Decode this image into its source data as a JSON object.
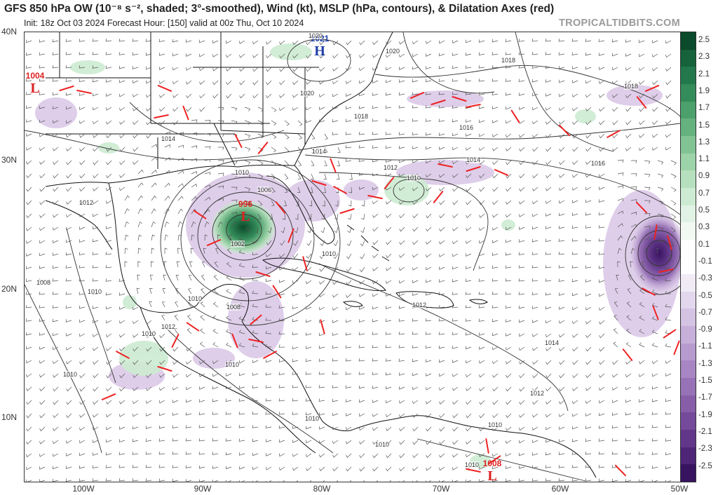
{
  "header": {
    "title": "GFS 850 hPa OW (10⁻⁸ s⁻², shaded; 3°-smoothed), Wind (kt), MSLP (hPa, contours), & Dilatation Axes (red)",
    "subtitle": "Init: 18z Oct 03 2024   Forecast Hour: [150]   valid at 00z Thu, Oct 10 2024",
    "brand": "TROPICALTIDBITS.COM"
  },
  "axes": {
    "lat_labels": [
      "40N",
      "30N",
      "20N",
      "10N"
    ],
    "lon_labels": [
      "100W",
      "90W",
      "80W",
      "70W",
      "60W",
      "50W"
    ]
  },
  "colorbar": {
    "labels": [
      "2.5",
      "2.3",
      "2.1",
      "1.9",
      "1.7",
      "1.5",
      "1.3",
      "1.1",
      "0.9",
      "0.7",
      "0.5",
      "0.3",
      "0.1",
      "-0.1",
      "-0.3",
      "-0.5",
      "-0.7",
      "-0.9",
      "-1.1",
      "-1.3",
      "-1.5",
      "-1.7",
      "-1.9",
      "-2.1",
      "-2.3",
      "-2.5"
    ],
    "colors": [
      "#0b4a2a",
      "#16623a",
      "#22784a",
      "#348c5a",
      "#4ca06c",
      "#66b27e",
      "#82c394",
      "#9dd3a8",
      "#b6e0bd",
      "#cdebd2",
      "#e1f3e4",
      "#f1f9f2",
      "#ffffff",
      "#ffffff",
      "#f1ebf6",
      "#e3d7ed",
      "#d5c3e3",
      "#c6afd9",
      "#b79bce",
      "#a886c3",
      "#9872b6",
      "#885ea9",
      "#764a9a",
      "#62378a",
      "#4e2577",
      "#381460"
    ]
  },
  "systems": [
    {
      "letter": "L",
      "pressure": "1004",
      "color": "#dd2222"
    },
    {
      "letter": "H",
      "pressure": "1021",
      "color": "#1f3ea8"
    },
    {
      "letter": "L",
      "pressure": "996",
      "color": "#dd2222"
    },
    {
      "letter": "L",
      "pressure": "1008",
      "color": "#dd2222"
    }
  ],
  "isobar_labels": [
    "1020",
    "1020",
    "1018",
    "1018",
    "1020",
    "1018",
    "1016",
    "1014",
    "1014",
    "1016",
    "1014",
    "1012",
    "1010",
    "1010",
    "1006",
    "1002",
    "1012",
    "1010",
    "1008",
    "1010",
    "1010",
    "1012",
    "1008",
    "1010",
    "1010",
    "1010",
    "1012",
    "1014",
    "1012",
    "1010",
    "1010",
    "1010",
    "1010"
  ]
}
